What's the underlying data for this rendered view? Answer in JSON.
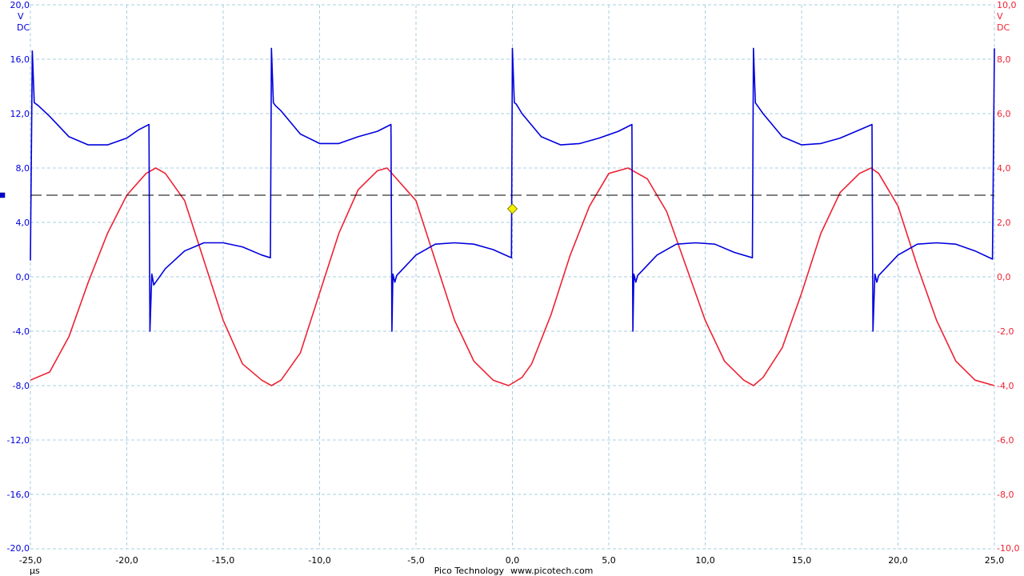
{
  "brand": {
    "name": "Pico Technology",
    "url": "www.picotech.com"
  },
  "colors": {
    "channel_a": "#0000dd",
    "channel_b": "#ee2233",
    "grid": "#a9cfe0",
    "trigger_marker": "#f4f000"
  },
  "chart_data": {
    "type": "line",
    "title": "",
    "xlabel": "µs",
    "xlim": [
      -25,
      25
    ],
    "x_ticks": [
      "-25,0",
      "-20,0",
      "-15,0",
      "-10,0",
      "-5,0",
      "0,0",
      "5,0",
      "10,0",
      "15,0",
      "20,0",
      "25,0"
    ],
    "left_axis": {
      "unit": "V",
      "coupling": "DC",
      "ylim": [
        -20,
        20
      ],
      "ticks": [
        "20,0",
        "16,0",
        "12,0",
        "8,0",
        "4,0",
        "0,0",
        "-4,0",
        "-8,0",
        "-12,0",
        "-16,0",
        "-20,0"
      ]
    },
    "right_axis": {
      "unit": "V",
      "coupling": "DC",
      "ylim": [
        -10,
        10
      ],
      "ticks": [
        "10,0",
        "8,0",
        "6,0",
        "4,0",
        "2,0",
        "0,0",
        "-2,0",
        "-4,0",
        "-6,0",
        "-8,0",
        "-10,0"
      ]
    },
    "grid": true,
    "trigger": {
      "time": 0,
      "level": 5.0,
      "axis": "left"
    },
    "reference_line": {
      "level": 6.0,
      "axis": "left",
      "style": "dashed"
    },
    "series": [
      {
        "axis": "left",
        "x": [
          -25.0,
          -24.9,
          -24.8,
          -24.6,
          -24.0,
          -23.0,
          -22.0,
          -21.0,
          -20.0,
          -19.4,
          -18.85,
          -18.8,
          -18.7,
          -18.6,
          -18.0,
          -17.0,
          -16.0,
          -15.0,
          -14.0,
          -13.0,
          -12.55,
          -12.5,
          -12.4,
          -12.3,
          -12.0,
          -11.0,
          -10.0,
          -9.0,
          -8.0,
          -7.0,
          -6.3,
          -6.25,
          -6.2,
          -6.1,
          -6.0,
          -5.0,
          -4.0,
          -3.0,
          -2.0,
          -1.0,
          -0.05,
          0.0,
          0.1,
          0.2,
          0.5,
          1.5,
          2.5,
          3.5,
          4.5,
          5.5,
          6.2,
          6.25,
          6.3,
          6.4,
          6.5,
          7.5,
          8.5,
          9.5,
          10.5,
          11.5,
          12.45,
          12.5,
          12.6,
          12.7,
          13.0,
          14.0,
          15.0,
          16.0,
          17.0,
          18.0,
          18.65,
          18.7,
          18.8,
          18.9,
          19.0,
          20.0,
          21.0,
          22.0,
          23.0,
          24.0,
          24.9,
          25.0
        ],
        "values": [
          1.2,
          16.6,
          12.8,
          12.6,
          11.8,
          10.3,
          9.7,
          9.7,
          10.2,
          10.8,
          11.2,
          -4.0,
          0.2,
          -0.6,
          0.6,
          1.9,
          2.5,
          2.5,
          2.2,
          1.6,
          1.4,
          16.8,
          12.8,
          12.6,
          12.2,
          10.5,
          9.8,
          9.8,
          10.3,
          10.7,
          11.2,
          -4.0,
          0.2,
          -0.4,
          0.1,
          1.6,
          2.4,
          2.5,
          2.4,
          2.0,
          1.4,
          16.8,
          12.8,
          12.7,
          12.0,
          10.3,
          9.7,
          9.8,
          10.2,
          10.7,
          11.2,
          -4.0,
          0.2,
          -0.4,
          0.1,
          1.6,
          2.4,
          2.5,
          2.4,
          1.8,
          1.4,
          16.8,
          12.8,
          12.6,
          12.0,
          10.3,
          9.7,
          9.8,
          10.2,
          10.8,
          11.2,
          -4.0,
          0.2,
          -0.4,
          0.1,
          1.6,
          2.4,
          2.5,
          2.4,
          1.9,
          1.3,
          16.8
        ]
      },
      {
        "axis": "right",
        "x": [
          -25.0,
          -24.0,
          -23.0,
          -22.0,
          -21.0,
          -20.0,
          -19.0,
          -18.5,
          -18.0,
          -17.0,
          -16.0,
          -15.0,
          -14.0,
          -13.0,
          -12.5,
          -12.0,
          -11.0,
          -10.0,
          -9.0,
          -8.0,
          -7.0,
          -6.5,
          -6.0,
          -5.0,
          -4.0,
          -3.0,
          -2.0,
          -1.0,
          -0.2,
          0.5,
          1.0,
          2.0,
          3.0,
          4.0,
          5.0,
          6.0,
          6.5,
          7.0,
          8.0,
          9.0,
          10.0,
          11.0,
          12.0,
          12.5,
          13.0,
          14.0,
          15.0,
          16.0,
          17.0,
          18.0,
          18.6,
          19.0,
          20.0,
          21.0,
          22.0,
          23.0,
          24.0,
          25.0
        ],
        "values": [
          -3.8,
          -3.5,
          -2.2,
          -0.2,
          1.6,
          3.0,
          3.8,
          4.0,
          3.8,
          2.8,
          0.6,
          -1.6,
          -3.2,
          -3.8,
          -4.0,
          -3.8,
          -2.8,
          -0.6,
          1.6,
          3.2,
          3.9,
          4.0,
          3.6,
          2.8,
          0.6,
          -1.6,
          -3.1,
          -3.8,
          -4.0,
          -3.7,
          -3.2,
          -1.4,
          0.8,
          2.6,
          3.8,
          4.0,
          3.8,
          3.6,
          2.4,
          0.4,
          -1.6,
          -3.1,
          -3.8,
          -4.0,
          -3.7,
          -2.6,
          -0.6,
          1.6,
          3.1,
          3.8,
          4.0,
          3.8,
          2.6,
          0.4,
          -1.6,
          -3.1,
          -3.8,
          -4.0
        ]
      }
    ]
  }
}
